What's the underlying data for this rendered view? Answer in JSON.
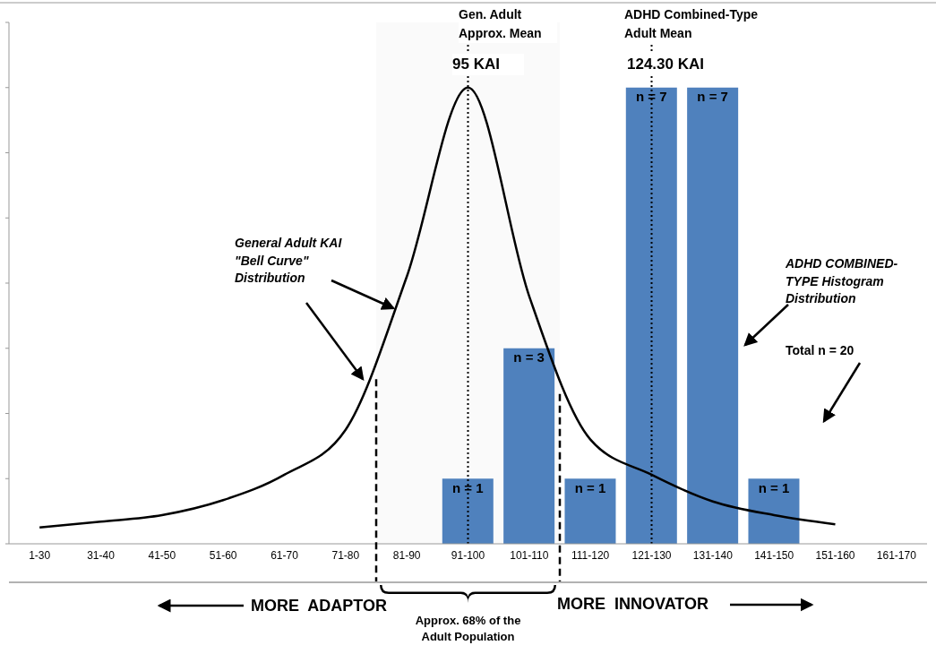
{
  "chart_data": {
    "type": "bar",
    "categories": [
      "1-30",
      "31-40",
      "41-50",
      "51-60",
      "61-70",
      "71-80",
      "81-90",
      "91-100",
      "101-110",
      "111-120",
      "121-130",
      "131-140",
      "141-150",
      "151-160",
      "161-170"
    ],
    "series": [
      {
        "color": "#4f81bd",
        "values": [
          0,
          0,
          0,
          0,
          0,
          0,
          0,
          1,
          3,
          1,
          7,
          7,
          1,
          0,
          0
        ],
        "value_labels": [
          null,
          null,
          null,
          null,
          null,
          null,
          null,
          "n = 1",
          "n = 3",
          "n = 1",
          "n = 7",
          "n = 7",
          "n = 1",
          null,
          null
        ]
      },
      {
        "type": "line",
        "color": "#000000",
        "values": [
          0.25,
          0.34,
          0.44,
          0.67,
          1.06,
          1.75,
          4.1,
          7.0,
          3.8,
          1.6,
          1.06,
          0.65,
          0.44,
          0.3,
          null
        ],
        "marker": "none",
        "line_style": "solid"
      }
    ],
    "ylim": [
      0,
      8
    ],
    "yticks": [
      {
        "value": 0,
        "label": null
      },
      {
        "value": 1,
        "label": null
      },
      {
        "value": 2,
        "label": null
      },
      {
        "value": 3,
        "label": null
      },
      {
        "value": 4,
        "label": null
      },
      {
        "value": 5,
        "label": null
      },
      {
        "value": 6,
        "label": null
      },
      {
        "value": 7,
        "label": null
      },
      {
        "value": 8,
        "label": null
      }
    ],
    "tick_labels": "x",
    "ref_lines": [
      {
        "axis": "x",
        "value": "91-100",
        "label": "Gen. Adult Approx. Mean",
        "line_style": "dotted"
      },
      {
        "axis": "x",
        "value": "121-130",
        "label": "ADHD Combined-Type Adult Mean",
        "line_style": "dotted"
      }
    ],
    "bands": [
      {
        "axis": "x",
        "from": "81-90",
        "to": "101-110"
      }
    ],
    "annotations": [
      "95 KAI",
      "124.30 KAI",
      "General Adult KAI \"Bell Curve\" Distribution",
      "ADHD COMBINED-TYPE Histogram Distribution",
      "Total n = 20",
      "MORE  ADAPTOR",
      "MORE  INNOVATOR",
      "Approx. 68% of the Adult Population"
    ]
  }
}
